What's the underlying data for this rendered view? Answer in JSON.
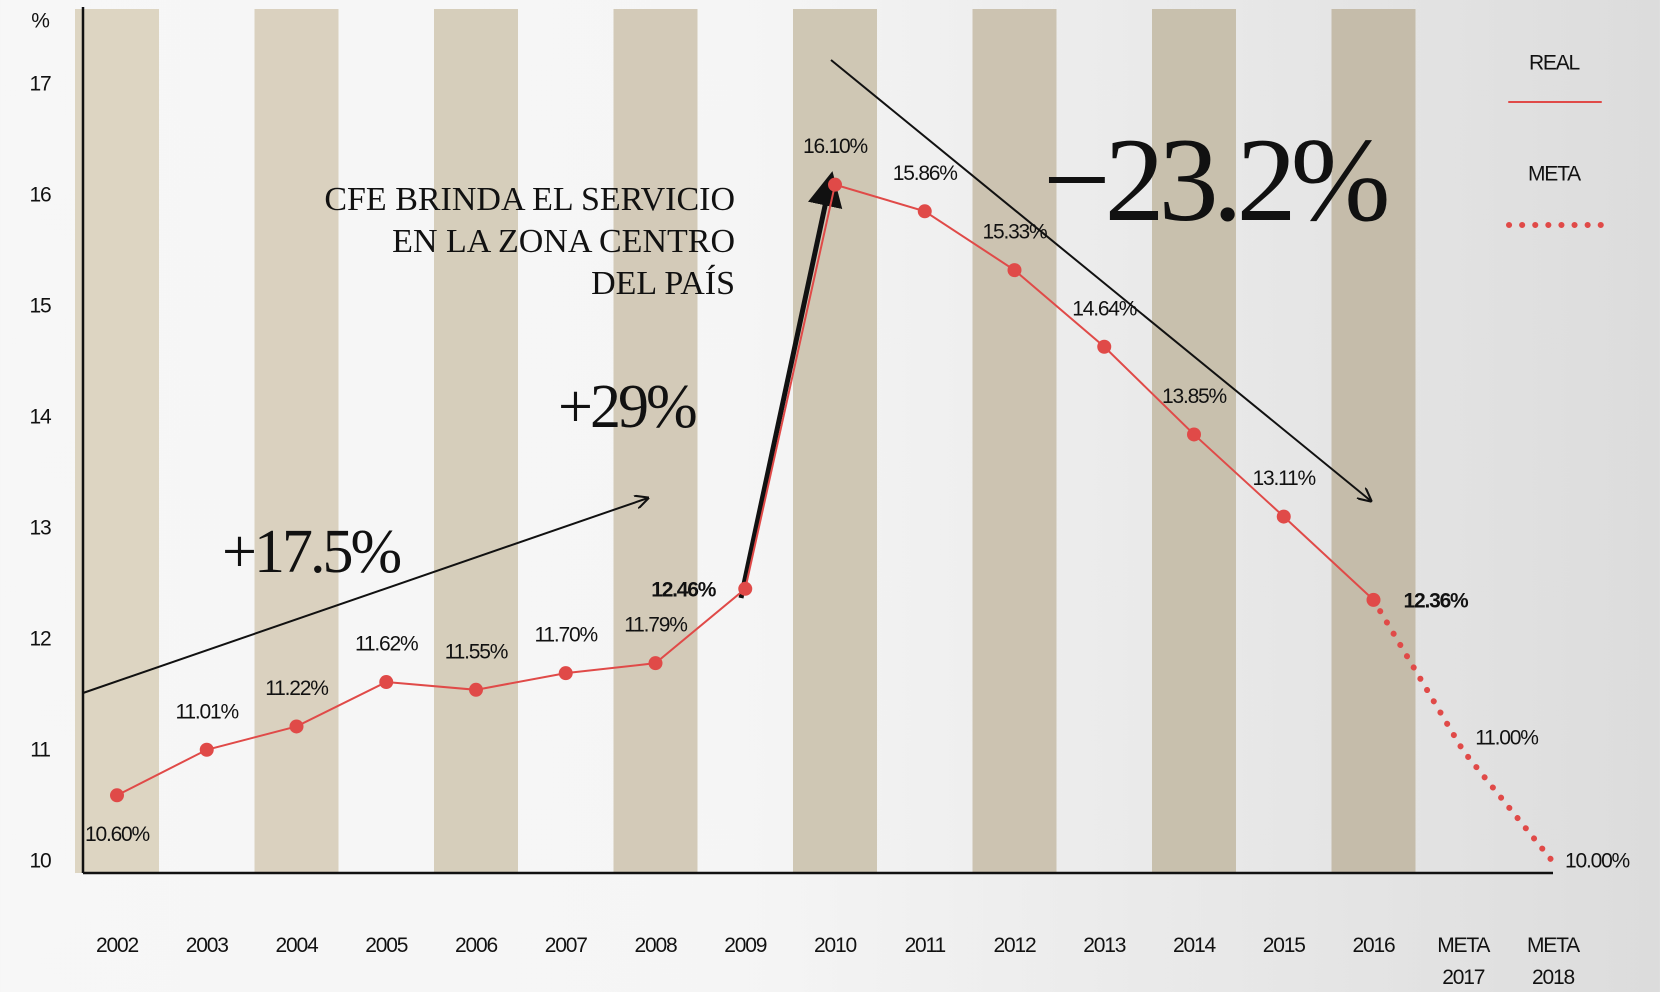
{
  "chart_data": {
    "type": "line",
    "y_label": "%",
    "categories": [
      "2002",
      "2003",
      "2004",
      "2005",
      "2006",
      "2007",
      "2008",
      "2009",
      "2010",
      "2011",
      "2012",
      "2013",
      "2014",
      "2015",
      "2016",
      "META 2017",
      "META 2018"
    ],
    "series": [
      {
        "name": "REAL",
        "color": "#e04a48",
        "line_style": "solid",
        "values": [
          10.6,
          11.01,
          11.22,
          11.62,
          11.55,
          11.7,
          11.79,
          12.46,
          16.1,
          15.86,
          15.33,
          14.64,
          13.85,
          13.11,
          12.36,
          null,
          null
        ],
        "value_labels": [
          "10.60%",
          "11.01%",
          "11.22%",
          "11.62%",
          "11.55%",
          "11.70%",
          "11.79%",
          "12.46%",
          "16.10%",
          "15.86%",
          "15.33%",
          "14.64%",
          "13.85%",
          "13.11%",
          "12.36%",
          null,
          null
        ]
      },
      {
        "name": "META",
        "color": "#e04a48",
        "line_style": "dotted",
        "values": [
          null,
          null,
          null,
          null,
          null,
          null,
          null,
          12.46,
          null,
          null,
          null,
          null,
          null,
          null,
          12.36,
          11.0,
          10.0
        ],
        "value_labels": [
          null,
          null,
          null,
          null,
          null,
          null,
          null,
          null,
          null,
          null,
          null,
          null,
          null,
          null,
          null,
          "11.00%",
          "10.00%"
        ]
      }
    ],
    "highlight_indices": [
      7,
      14
    ],
    "ylim": [
      9.9,
      17.7
    ],
    "yticks": [
      10,
      11,
      12,
      13,
      14,
      15,
      16,
      17
    ],
    "annotations": {
      "note": [
        "CFE BRINDA EL SERVICIO",
        "EN LA ZONA CENTRO",
        "DEL PAÍS"
      ],
      "change_1": "+17.5%",
      "change_2": "+29%",
      "change_3": "−23.2%"
    }
  }
}
